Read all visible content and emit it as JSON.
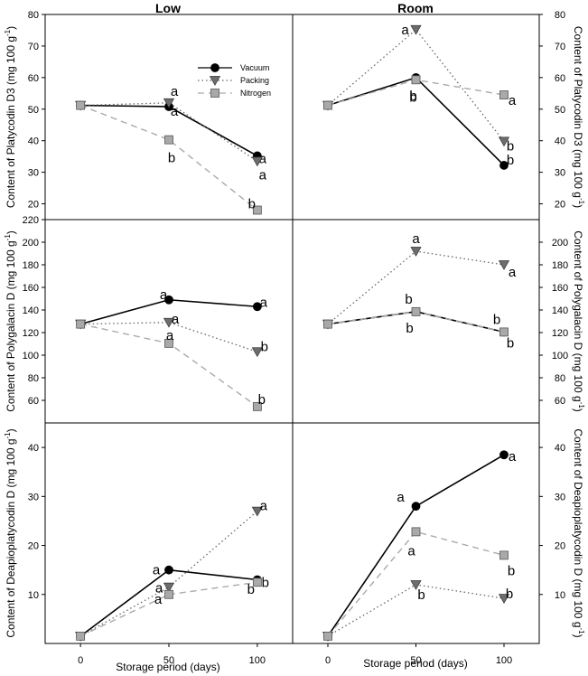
{
  "figure": {
    "column_titles": [
      "Low",
      "Room"
    ],
    "x_axis_label": "Storage period (days)",
    "legend": [
      "Vacuum",
      "Packing",
      "Nitrogen"
    ]
  },
  "series_styles": {
    "Vacuum": {
      "marker": "circle",
      "line": "solid",
      "color": "#000000"
    },
    "Packing": {
      "marker": "triangle-down",
      "line": "dotted",
      "color": "#666666"
    },
    "Nitrogen": {
      "marker": "square",
      "line": "dashed",
      "color": "#aaaaaa"
    }
  },
  "chart_data": [
    {
      "type": "line",
      "row": 0,
      "column": "Low",
      "ylabel": "Content of Platycodin D3 (mg 100 g-1)",
      "x": [
        0,
        50,
        100
      ],
      "xlim": [
        -20,
        120
      ],
      "ylim": [
        15,
        80
      ],
      "xticks": [
        "0",
        "50",
        "100"
      ],
      "yticks": [
        "20",
        "30",
        "40",
        "50",
        "60",
        "70",
        "80"
      ],
      "series": [
        {
          "name": "Vacuum",
          "values": [
            51.2,
            50.8,
            35.2
          ],
          "labels": [
            "",
            "a",
            "a"
          ]
        },
        {
          "name": "Packing",
          "values": [
            51.2,
            52.0,
            33.5
          ],
          "labels": [
            "",
            "a",
            "a"
          ]
        },
        {
          "name": "Nitrogen",
          "values": [
            51.2,
            40.3,
            18.0
          ],
          "labels": [
            "",
            "b",
            "b"
          ]
        }
      ]
    },
    {
      "type": "line",
      "row": 0,
      "column": "Room",
      "ylabel": "Content of Platycodin D3 (mg 100 g-1)",
      "x": [
        0,
        50,
        100
      ],
      "xlim": [
        -20,
        120
      ],
      "ylim": [
        15,
        80
      ],
      "xticks": [
        "0",
        "50",
        "100"
      ],
      "yticks": [
        "20",
        "30",
        "40",
        "50",
        "60",
        "70",
        "80"
      ],
      "series": [
        {
          "name": "Vacuum",
          "values": [
            51.2,
            60.0,
            32.2
          ],
          "labels": [
            "",
            "b",
            "b"
          ]
        },
        {
          "name": "Packing",
          "values": [
            51.2,
            75.2,
            39.8
          ],
          "labels": [
            "",
            "a",
            "b"
          ]
        },
        {
          "name": "Nitrogen",
          "values": [
            51.2,
            59.3,
            54.5
          ],
          "labels": [
            "",
            "b",
            "a"
          ]
        }
      ]
    },
    {
      "type": "line",
      "row": 1,
      "column": "Low",
      "ylabel": "Content of Polygalacin D (mg 100 g-1)",
      "x": [
        0,
        50,
        100
      ],
      "xlim": [
        -20,
        120
      ],
      "ylim": [
        40,
        220
      ],
      "xticks": [
        "0",
        "50",
        "100"
      ],
      "yticks": [
        "60",
        "80",
        "100",
        "120",
        "140",
        "160",
        "180",
        "200",
        "220"
      ],
      "series": [
        {
          "name": "Vacuum",
          "values": [
            127.5,
            149.0,
            143.0
          ],
          "labels": [
            "",
            "a",
            "a"
          ]
        },
        {
          "name": "Packing",
          "values": [
            127.5,
            129.0,
            103.0
          ],
          "labels": [
            "",
            "a",
            "b"
          ]
        },
        {
          "name": "Nitrogen",
          "values": [
            127.5,
            110.5,
            54.5
          ],
          "labels": [
            "",
            "a",
            "b"
          ]
        }
      ]
    },
    {
      "type": "line",
      "row": 1,
      "column": "Room",
      "ylabel": "Content of Polygalacin D (mg 100 g-1)",
      "x": [
        0,
        50,
        100
      ],
      "xlim": [
        -20,
        120
      ],
      "ylim": [
        40,
        220
      ],
      "xticks": [
        "0",
        "50",
        "100"
      ],
      "yticks": [
        "60",
        "80",
        "100",
        "120",
        "140",
        "160",
        "180",
        "200"
      ],
      "series": [
        {
          "name": "Vacuum",
          "values": [
            127.5,
            138.5,
            120.5
          ],
          "labels": [
            "",
            "b",
            "b"
          ]
        },
        {
          "name": "Packing",
          "values": [
            127.5,
            192.0,
            180.0
          ],
          "labels": [
            "",
            "a",
            "a"
          ]
        },
        {
          "name": "Nitrogen",
          "values": [
            127.5,
            138.5,
            120.5
          ],
          "labels": [
            "",
            "b",
            "b"
          ]
        }
      ]
    },
    {
      "type": "line",
      "row": 2,
      "column": "Low",
      "ylabel": "Content of Deapioplatycodin D (mg 100 g-1)",
      "x": [
        0,
        50,
        100
      ],
      "xlim": [
        -20,
        120
      ],
      "ylim": [
        0,
        45
      ],
      "xticks": [
        "0",
        "50",
        "100"
      ],
      "yticks": [
        "10",
        "20",
        "30",
        "40"
      ],
      "series": [
        {
          "name": "Vacuum",
          "values": [
            1.5,
            15.0,
            13.0
          ],
          "labels": [
            "",
            "a",
            "b"
          ]
        },
        {
          "name": "Packing",
          "values": [
            1.5,
            11.5,
            27.0
          ],
          "labels": [
            "",
            "a",
            "a"
          ]
        },
        {
          "name": "Nitrogen",
          "values": [
            1.5,
            10.0,
            12.5
          ],
          "labels": [
            "",
            "a",
            "b"
          ]
        }
      ]
    },
    {
      "type": "line",
      "row": 2,
      "column": "Room",
      "ylabel": "Content of Deapioplatycodin D (mg 100 g-1)",
      "x": [
        0,
        50,
        100
      ],
      "xlim": [
        -20,
        120
      ],
      "ylim": [
        0,
        45
      ],
      "xticks": [
        "0",
        "50",
        "100"
      ],
      "yticks": [
        "10",
        "20",
        "30",
        "40"
      ],
      "series": [
        {
          "name": "Vacuum",
          "values": [
            1.5,
            28.0,
            38.5
          ],
          "labels": [
            "",
            "a",
            "a"
          ]
        },
        {
          "name": "Packing",
          "values": [
            1.5,
            12.0,
            9.2
          ],
          "labels": [
            "",
            "b",
            "b"
          ]
        },
        {
          "name": "Nitrogen",
          "values": [
            1.5,
            22.8,
            18.0
          ],
          "labels": [
            "",
            "a",
            "b"
          ]
        }
      ]
    }
  ]
}
